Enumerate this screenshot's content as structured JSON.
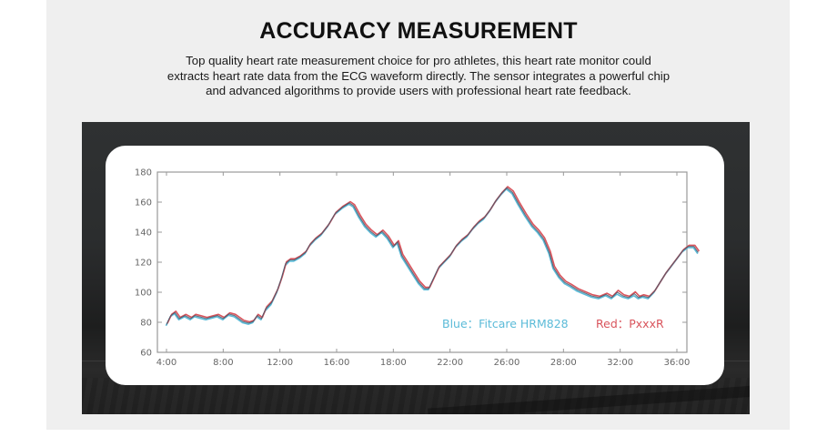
{
  "header": {
    "title": "ACCURACY MEASUREMENT",
    "description": "Top quality heart rate measurement choice for pro athletes, this heart rate monitor could extracts heart rate data from the ECG waveform directly. The sensor integrates a powerful chip and advanced algorithms to provide users with professional heart rate feedback."
  },
  "colors": {
    "blue": "#5bbbd8",
    "red": "#d9545c",
    "overlap": "#4a5566",
    "axis": "#999999"
  },
  "chart_data": {
    "type": "line",
    "title": "",
    "xlabel": "",
    "ylabel": "",
    "x_ticks": [
      "4:00",
      "8:00",
      "12:00",
      "16:00",
      "18:00",
      "22:00",
      "26:00",
      "28:00",
      "32:00",
      "36:00"
    ],
    "x_tick_positions": [
      4,
      8,
      12,
      16,
      20,
      24,
      28,
      32,
      36,
      40
    ],
    "y_ticks": [
      60,
      80,
      100,
      120,
      140,
      160,
      180
    ],
    "ylim": [
      60,
      180
    ],
    "xlim": [
      3.4,
      40.6
    ],
    "grid": false,
    "legend": [
      {
        "label": "Blue：Fitcare HRM828",
        "color": "#5bbbd8"
      },
      {
        "label": "Red：PxxxR",
        "color": "#d9545c"
      }
    ],
    "series": [
      {
        "name": "Blue: Fitcare HRM828",
        "points": [
          [
            4.0,
            78
          ],
          [
            4.3,
            84
          ],
          [
            4.6,
            86
          ],
          [
            4.9,
            82
          ],
          [
            5.3,
            84
          ],
          [
            5.7,
            82
          ],
          [
            6.0,
            84
          ],
          [
            6.4,
            83
          ],
          [
            6.8,
            82
          ],
          [
            7.2,
            83
          ],
          [
            7.6,
            84
          ],
          [
            8.0,
            82
          ],
          [
            8.4,
            85
          ],
          [
            8.8,
            84
          ],
          [
            9.1,
            82
          ],
          [
            9.4,
            80
          ],
          [
            9.8,
            79
          ],
          [
            10.1,
            80
          ],
          [
            10.4,
            84
          ],
          [
            10.7,
            82
          ],
          [
            11.0,
            88
          ],
          [
            11.4,
            92
          ],
          [
            11.8,
            100
          ],
          [
            12.1,
            108
          ],
          [
            12.4,
            118
          ],
          [
            12.7,
            121
          ],
          [
            13.0,
            121
          ],
          [
            13.4,
            123
          ],
          [
            13.8,
            126
          ],
          [
            14.1,
            131
          ],
          [
            14.5,
            135
          ],
          [
            14.9,
            138
          ],
          [
            15.4,
            144
          ],
          [
            15.9,
            152
          ],
          [
            16.4,
            156
          ],
          [
            16.9,
            159
          ],
          [
            17.2,
            157
          ],
          [
            17.6,
            150
          ],
          [
            18.0,
            144
          ],
          [
            18.4,
            140
          ],
          [
            18.8,
            137
          ],
          [
            19.2,
            140
          ],
          [
            19.6,
            136
          ],
          [
            20.0,
            130
          ],
          [
            20.3,
            133
          ],
          [
            20.6,
            124
          ],
          [
            21.0,
            118
          ],
          [
            21.4,
            112
          ],
          [
            21.8,
            106
          ],
          [
            22.2,
            102
          ],
          [
            22.5,
            102
          ],
          [
            22.8,
            108
          ],
          [
            23.2,
            116
          ],
          [
            23.6,
            120
          ],
          [
            24.0,
            124
          ],
          [
            24.4,
            130
          ],
          [
            24.8,
            134
          ],
          [
            25.2,
            137
          ],
          [
            25.6,
            142
          ],
          [
            26.0,
            146
          ],
          [
            26.4,
            149
          ],
          [
            26.8,
            154
          ],
          [
            27.2,
            160
          ],
          [
            27.6,
            165
          ],
          [
            28.0,
            169
          ],
          [
            28.4,
            166
          ],
          [
            28.8,
            159
          ],
          [
            29.3,
            151
          ],
          [
            29.8,
            144
          ],
          [
            30.2,
            140
          ],
          [
            30.6,
            135
          ],
          [
            31.0,
            126
          ],
          [
            31.3,
            116
          ],
          [
            31.7,
            110
          ],
          [
            32.1,
            106
          ],
          [
            32.5,
            104
          ],
          [
            33.0,
            101
          ],
          [
            33.5,
            99
          ],
          [
            34.0,
            97
          ],
          [
            34.5,
            96
          ],
          [
            35.0,
            98
          ],
          [
            35.4,
            96
          ],
          [
            35.8,
            99
          ],
          [
            36.2,
            97
          ],
          [
            36.6,
            96
          ],
          [
            37.0,
            98
          ],
          [
            37.3,
            96
          ],
          [
            37.6,
            97
          ],
          [
            38.0,
            96
          ],
          [
            38.4,
            100
          ],
          [
            38.8,
            106
          ],
          [
            39.2,
            112
          ],
          [
            39.6,
            117
          ],
          [
            40.0,
            122
          ],
          [
            40.4,
            127
          ],
          [
            40.8,
            130
          ],
          [
            41.2,
            130
          ],
          [
            41.5,
            126
          ]
        ]
      },
      {
        "name": "Red: PxxxR",
        "points": [
          [
            4.0,
            79
          ],
          [
            4.3,
            85
          ],
          [
            4.6,
            87
          ],
          [
            4.9,
            83
          ],
          [
            5.3,
            85
          ],
          [
            5.7,
            83
          ],
          [
            6.0,
            85
          ],
          [
            6.4,
            84
          ],
          [
            6.8,
            83
          ],
          [
            7.2,
            84
          ],
          [
            7.6,
            85
          ],
          [
            8.0,
            83
          ],
          [
            8.4,
            86
          ],
          [
            8.8,
            85
          ],
          [
            9.1,
            83
          ],
          [
            9.4,
            81
          ],
          [
            9.8,
            80
          ],
          [
            10.1,
            81
          ],
          [
            10.4,
            85
          ],
          [
            10.7,
            83
          ],
          [
            11.0,
            90
          ],
          [
            11.4,
            94
          ],
          [
            11.8,
            102
          ],
          [
            12.1,
            110
          ],
          [
            12.4,
            120
          ],
          [
            12.7,
            122
          ],
          [
            13.0,
            122
          ],
          [
            13.4,
            124
          ],
          [
            13.8,
            127
          ],
          [
            14.1,
            132
          ],
          [
            14.5,
            136
          ],
          [
            14.9,
            139
          ],
          [
            15.4,
            145
          ],
          [
            15.9,
            153
          ],
          [
            16.4,
            157
          ],
          [
            16.9,
            160
          ],
          [
            17.2,
            158
          ],
          [
            17.6,
            151
          ],
          [
            18.0,
            145
          ],
          [
            18.4,
            141
          ],
          [
            18.8,
            138
          ],
          [
            19.2,
            141
          ],
          [
            19.6,
            137
          ],
          [
            20.0,
            131
          ],
          [
            20.3,
            134
          ],
          [
            20.6,
            125
          ],
          [
            21.0,
            119
          ],
          [
            21.4,
            113
          ],
          [
            21.8,
            107
          ],
          [
            22.2,
            103
          ],
          [
            22.5,
            103
          ],
          [
            22.8,
            109
          ],
          [
            23.2,
            117
          ],
          [
            23.6,
            121
          ],
          [
            24.0,
            125
          ],
          [
            24.4,
            131
          ],
          [
            24.8,
            135
          ],
          [
            25.2,
            138
          ],
          [
            25.6,
            143
          ],
          [
            26.0,
            147
          ],
          [
            26.4,
            150
          ],
          [
            26.8,
            155
          ],
          [
            27.2,
            161
          ],
          [
            27.6,
            166
          ],
          [
            28.0,
            170
          ],
          [
            28.4,
            167
          ],
          [
            28.8,
            160
          ],
          [
            29.3,
            152
          ],
          [
            29.8,
            145
          ],
          [
            30.2,
            141
          ],
          [
            30.6,
            136
          ],
          [
            31.0,
            127
          ],
          [
            31.3,
            117
          ],
          [
            31.7,
            111
          ],
          [
            32.1,
            107
          ],
          [
            32.5,
            105
          ],
          [
            33.0,
            102
          ],
          [
            33.5,
            100
          ],
          [
            34.0,
            98
          ],
          [
            34.5,
            97
          ],
          [
            35.0,
            99
          ],
          [
            35.4,
            97
          ],
          [
            35.8,
            101
          ],
          [
            36.2,
            98
          ],
          [
            36.6,
            97
          ],
          [
            37.0,
            100
          ],
          [
            37.3,
            97
          ],
          [
            37.6,
            98
          ],
          [
            38.0,
            97
          ],
          [
            38.4,
            101
          ],
          [
            38.8,
            107
          ],
          [
            39.2,
            113
          ],
          [
            39.6,
            118
          ],
          [
            40.0,
            123
          ],
          [
            40.4,
            128
          ],
          [
            40.8,
            131
          ],
          [
            41.2,
            131
          ],
          [
            41.5,
            127
          ]
        ]
      }
    ]
  }
}
